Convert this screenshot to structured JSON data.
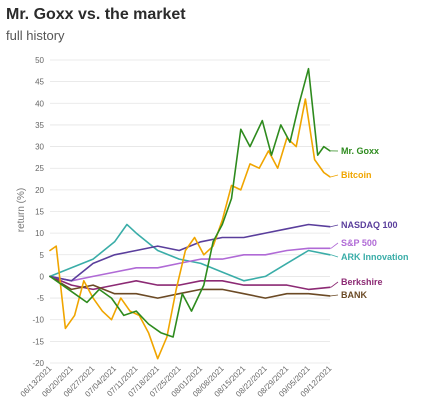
{
  "chart_data": {
    "type": "line",
    "title": "Mr. Goxx vs. the market",
    "subtitle": "full history",
    "xlabel": "",
    "ylabel": "return (%)",
    "ylim": [
      -20,
      50
    ],
    "yticks": [
      -20,
      -15,
      -10,
      -5,
      0,
      5,
      10,
      15,
      20,
      25,
      30,
      35,
      40,
      45,
      50
    ],
    "grid": "horizontal",
    "legend": "direct end labels",
    "x_ticks": [
      "06/13/2021",
      "06/20/2021",
      "06/27/2021",
      "07/04/2021",
      "07/11/2021",
      "07/18/2021",
      "07/25/2021",
      "08/01/2021",
      "08/08/2021",
      "08/15/2021",
      "08/22/2021",
      "08/29/2021",
      "09/05/2021",
      "09/12/2021"
    ],
    "x_range": [
      "2021-06-13",
      "2021-09-12"
    ],
    "series": [
      {
        "name": "Mr. Goxx",
        "color": "#2e8b1e",
        "x": [
          "2021-06-13",
          "2021-06-17",
          "2021-06-21",
          "2021-06-25",
          "2021-06-29",
          "2021-07-03",
          "2021-07-07",
          "2021-07-11",
          "2021-07-15",
          "2021-07-19",
          "2021-07-23",
          "2021-07-26",
          "2021-07-29",
          "2021-08-02",
          "2021-08-05",
          "2021-08-08",
          "2021-08-11",
          "2021-08-14",
          "2021-08-17",
          "2021-08-21",
          "2021-08-24",
          "2021-08-27",
          "2021-08-30",
          "2021-09-02",
          "2021-09-05",
          "2021-09-08",
          "2021-09-10",
          "2021-09-12"
        ],
        "y": [
          0,
          -2,
          -4,
          -6,
          -3,
          -5,
          -9,
          -8,
          -11,
          -13,
          -14,
          -4,
          -8,
          -2,
          8,
          12,
          18,
          34,
          30,
          36,
          28,
          35,
          31,
          40,
          48,
          28,
          30,
          29
        ]
      },
      {
        "name": "Bitcoin",
        "color": "#f0a500",
        "x": [
          "2021-06-13",
          "2021-06-15",
          "2021-06-18",
          "2021-06-21",
          "2021-06-24",
          "2021-06-27",
          "2021-06-30",
          "2021-07-03",
          "2021-07-06",
          "2021-07-09",
          "2021-07-12",
          "2021-07-15",
          "2021-07-18",
          "2021-07-21",
          "2021-07-24",
          "2021-07-27",
          "2021-07-30",
          "2021-08-02",
          "2021-08-05",
          "2021-08-08",
          "2021-08-11",
          "2021-08-14",
          "2021-08-17",
          "2021-08-20",
          "2021-08-23",
          "2021-08-26",
          "2021-08-29",
          "2021-09-01",
          "2021-09-04",
          "2021-09-07",
          "2021-09-10",
          "2021-09-12"
        ],
        "y": [
          6,
          7,
          -12,
          -9,
          -1,
          -5,
          -8,
          -10,
          -5,
          -8,
          -9,
          -13,
          -19,
          -14,
          -3,
          6,
          9,
          5,
          7,
          13,
          21,
          20,
          26,
          25,
          29,
          25,
          32,
          30,
          41,
          27,
          24,
          23
        ]
      },
      {
        "name": "NASDAQ 100",
        "color": "#5a3e9c",
        "x": [
          "2021-06-13",
          "2021-06-20",
          "2021-06-27",
          "2021-07-04",
          "2021-07-11",
          "2021-07-18",
          "2021-07-25",
          "2021-08-01",
          "2021-08-08",
          "2021-08-15",
          "2021-08-22",
          "2021-08-29",
          "2021-09-05",
          "2021-09-12"
        ],
        "y": [
          0,
          -1,
          3,
          5,
          6,
          7,
          6,
          8,
          9,
          9,
          10,
          11,
          12,
          11.5
        ]
      },
      {
        "name": "S&P 500",
        "color": "#b06ad6",
        "x": [
          "2021-06-13",
          "2021-06-20",
          "2021-06-27",
          "2021-07-04",
          "2021-07-11",
          "2021-07-18",
          "2021-07-25",
          "2021-08-01",
          "2021-08-08",
          "2021-08-15",
          "2021-08-22",
          "2021-08-29",
          "2021-09-05",
          "2021-09-12"
        ],
        "y": [
          0,
          -1,
          0,
          1,
          2,
          2,
          3,
          4,
          4,
          5,
          5,
          6,
          6.5,
          6.5
        ]
      },
      {
        "name": "ARK Innovation",
        "color": "#3aada8",
        "x": [
          "2021-06-13",
          "2021-06-20",
          "2021-06-27",
          "2021-07-04",
          "2021-07-08",
          "2021-07-11",
          "2021-07-18",
          "2021-07-25",
          "2021-08-01",
          "2021-08-08",
          "2021-08-15",
          "2021-08-22",
          "2021-08-29",
          "2021-09-05",
          "2021-09-12"
        ],
        "y": [
          0,
          2,
          4,
          8,
          12,
          10,
          6,
          4,
          3,
          1,
          -1,
          0,
          3,
          6,
          5
        ]
      },
      {
        "name": "Berkshire",
        "color": "#8c2a74",
        "x": [
          "2021-06-13",
          "2021-06-20",
          "2021-06-27",
          "2021-07-04",
          "2021-07-11",
          "2021-07-18",
          "2021-07-25",
          "2021-08-01",
          "2021-08-08",
          "2021-08-15",
          "2021-08-22",
          "2021-08-29",
          "2021-09-05",
          "2021-09-12"
        ],
        "y": [
          0,
          -2,
          -3,
          -2,
          -1,
          -2,
          -2,
          -1,
          -1,
          -2,
          -2,
          -2,
          -3,
          -2.5
        ]
      },
      {
        "name": "BANK",
        "color": "#6b4a25",
        "x": [
          "2021-06-13",
          "2021-06-20",
          "2021-06-27",
          "2021-07-04",
          "2021-07-11",
          "2021-07-18",
          "2021-07-25",
          "2021-08-01",
          "2021-08-08",
          "2021-08-15",
          "2021-08-22",
          "2021-08-29",
          "2021-09-05",
          "2021-09-12"
        ],
        "y": [
          0,
          -3,
          -2,
          -4,
          -4,
          -5,
          -4,
          -3,
          -3,
          -4,
          -5,
          -4,
          -4,
          -4.5
        ]
      }
    ]
  }
}
